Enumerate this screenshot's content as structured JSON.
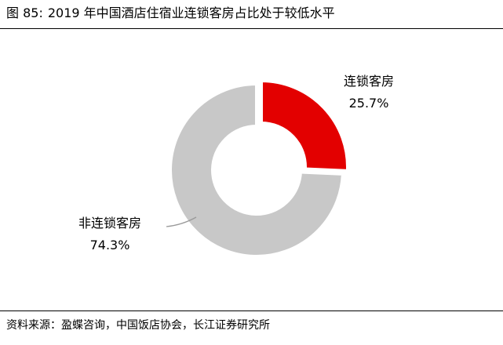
{
  "header": {
    "figure_number": "图 85:",
    "title": "2019 年中国酒店住宿业连锁客房占比处于较低水平"
  },
  "chart_data": {
    "type": "pie",
    "donut": true,
    "categories": [
      "连锁客房",
      "非连锁客房"
    ],
    "values": [
      25.7,
      74.3
    ],
    "value_labels": [
      "25.7%",
      "74.3%"
    ],
    "colors": [
      "#e30000",
      "#c8c8c8"
    ],
    "highlight": "连锁客房",
    "start_angle_deg": 0,
    "direction": "clockwise"
  },
  "footer": {
    "source": "资料来源：盈蝶咨询，中国饭店协会，长江证券研究所"
  }
}
